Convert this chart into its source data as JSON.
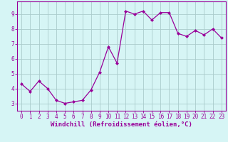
{
  "x": [
    0,
    1,
    2,
    3,
    4,
    5,
    6,
    7,
    8,
    9,
    10,
    11,
    12,
    13,
    14,
    15,
    16,
    17,
    18,
    19,
    20,
    21,
    22,
    23
  ],
  "y": [
    4.3,
    3.8,
    4.5,
    4.0,
    3.2,
    3.0,
    3.1,
    3.2,
    3.9,
    5.1,
    6.8,
    5.7,
    9.2,
    9.0,
    9.2,
    8.6,
    9.1,
    9.1,
    7.7,
    7.5,
    7.9,
    7.6,
    8.0,
    7.4
  ],
  "line_color": "#990099",
  "marker": "D",
  "marker_size": 2,
  "bg_color": "#d6f5f5",
  "grid_color": "#aacccc",
  "axis_color": "#990099",
  "xlabel": "Windchill (Refroidissement éolien,°C)",
  "xlim": [
    -0.5,
    23.5
  ],
  "ylim": [
    2.5,
    9.85
  ],
  "yticks": [
    3,
    4,
    5,
    6,
    7,
    8,
    9
  ],
  "xticks": [
    0,
    1,
    2,
    3,
    4,
    5,
    6,
    7,
    8,
    9,
    10,
    11,
    12,
    13,
    14,
    15,
    16,
    17,
    18,
    19,
    20,
    21,
    22,
    23
  ],
  "tick_fontsize": 5.5,
  "xlabel_fontsize": 6.5
}
